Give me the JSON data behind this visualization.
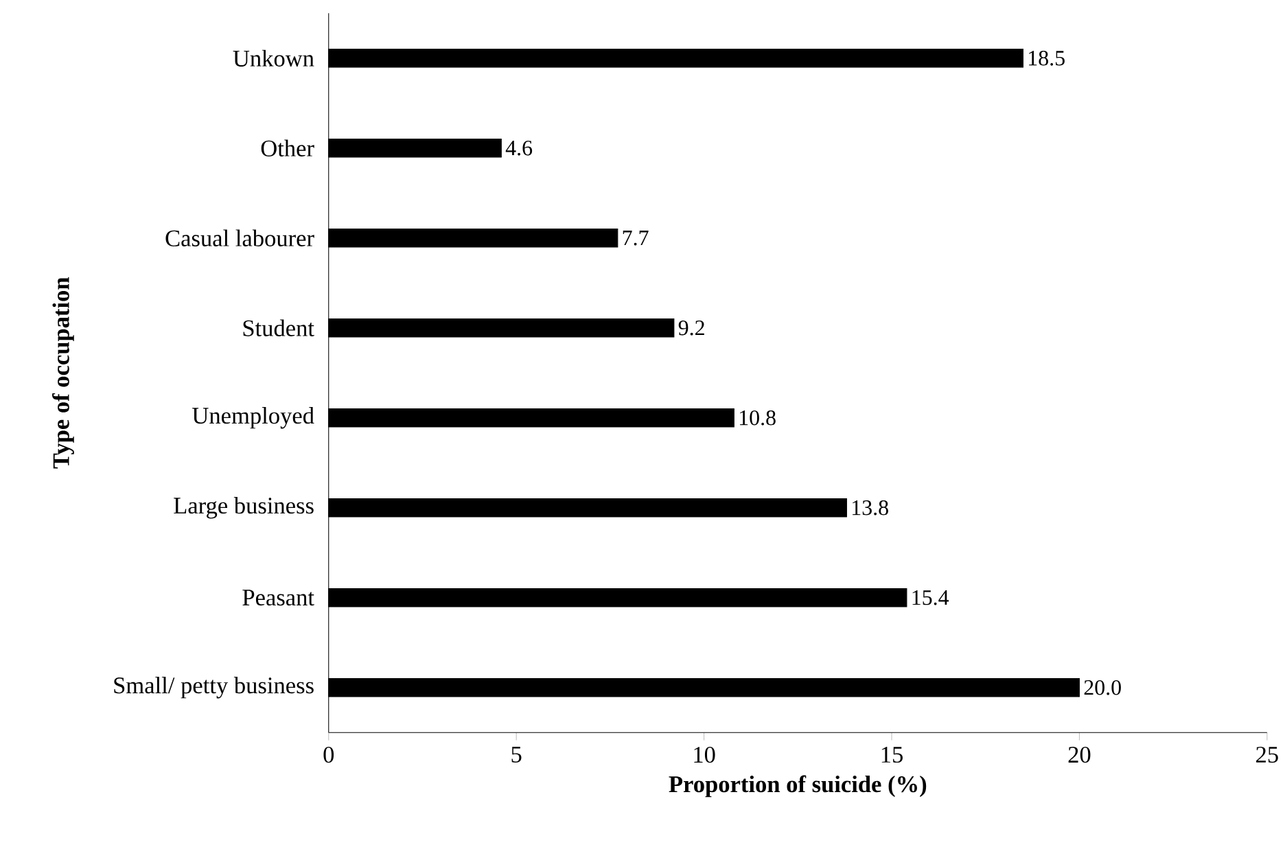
{
  "chart_data": {
    "type": "bar",
    "orientation": "horizontal",
    "xlabel": "Proportion of suicide (%)",
    "ylabel": "Type of occupation",
    "categories": [
      "Unkown",
      "Other",
      "Casual labourer",
      "Student",
      "Unemployed",
      "Large business",
      "Peasant",
      "Small/ petty business"
    ],
    "values": [
      18.5,
      4.6,
      7.7,
      9.2,
      10.8,
      13.8,
      15.4,
      20.0
    ],
    "value_labels": [
      "18.5",
      "4.6",
      "7.7",
      "9.2",
      "10.8",
      "13.8",
      "15.4",
      "20.0"
    ],
    "color": "#000000",
    "xlim": [
      0,
      25
    ],
    "xticks": [
      0,
      5,
      10,
      15,
      20,
      25
    ],
    "grid": false
  }
}
